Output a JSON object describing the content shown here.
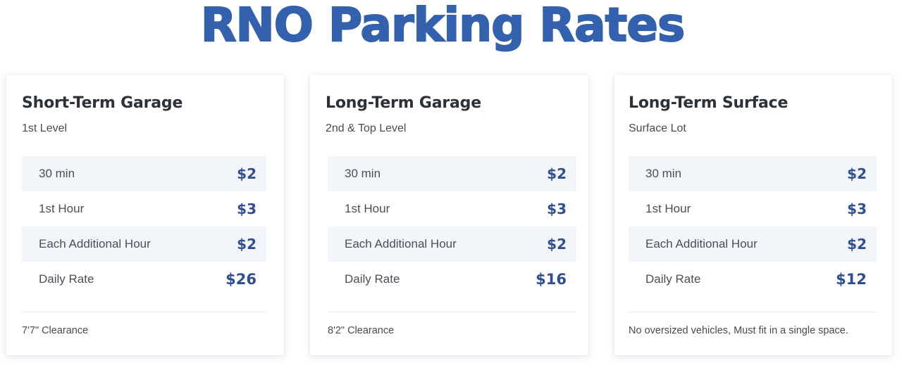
{
  "page": {
    "title": "RNO Parking Rates",
    "colors": {
      "title": "#3361ae",
      "price": "#2f4f92",
      "row_shade": "#f2f6fb",
      "heading": "#2c3038"
    }
  },
  "cards": [
    {
      "heading": "Short-Term Garage",
      "subtitle": "1st Level",
      "rates": [
        {
          "label": "30 min",
          "price": "$2"
        },
        {
          "label": "1st Hour",
          "price": "$3"
        },
        {
          "label": "Each Additional Hour",
          "price": "$2"
        },
        {
          "label": "Daily Rate",
          "price": "$26"
        }
      ],
      "footer": "7'7\" Clearance"
    },
    {
      "heading": "Long-Term Garage",
      "subtitle": "2nd & Top Level",
      "rates": [
        {
          "label": "30 min",
          "price": "$2"
        },
        {
          "label": "1st Hour",
          "price": "$3"
        },
        {
          "label": "Each Additional Hour",
          "price": "$2"
        },
        {
          "label": "Daily Rate",
          "price": "$16"
        }
      ],
      "footer": "8'2\" Clearance"
    },
    {
      "heading": "Long-Term Surface",
      "subtitle": "Surface Lot",
      "rates": [
        {
          "label": "30 min",
          "price": "$2"
        },
        {
          "label": "1st Hour",
          "price": "$3"
        },
        {
          "label": "Each Additional Hour",
          "price": "$2"
        },
        {
          "label": "Daily Rate",
          "price": "$12"
        }
      ],
      "footer": "No oversized vehicles, Must fit in a single space."
    }
  ]
}
